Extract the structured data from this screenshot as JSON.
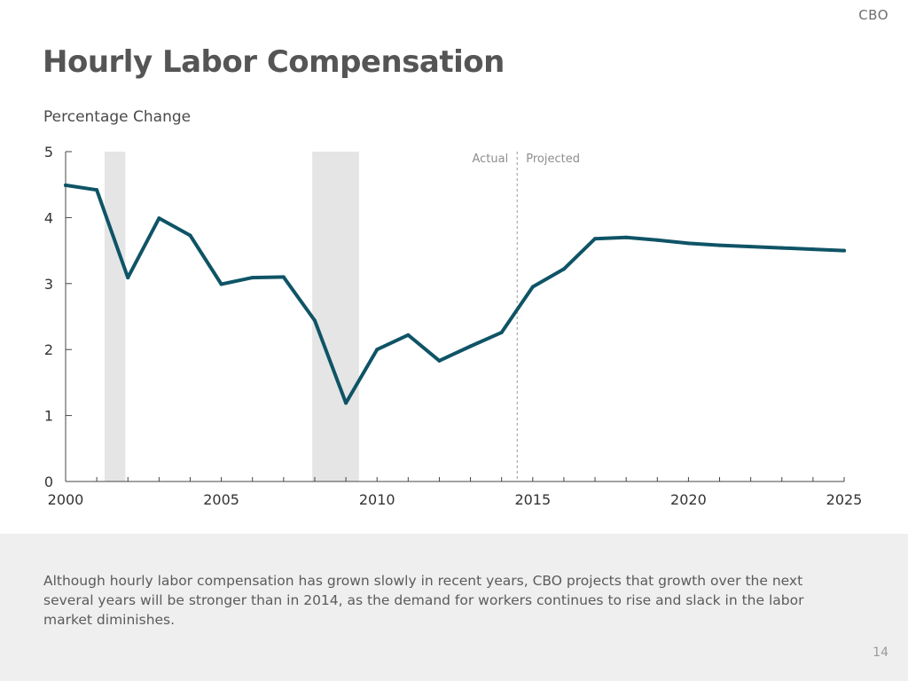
{
  "header": {
    "brand": "CBO"
  },
  "footer": {
    "caption": "Although hourly labor compensation has grown slowly in recent years, CBO projects that growth over the next several years will be stronger than in 2014, as the demand for workers continues to rise and slack in the labor market diminishes.",
    "page_number": "14"
  },
  "chart_data": {
    "type": "line",
    "title": "Hourly Labor Compensation",
    "ylabel": "Percentage Change",
    "xlabel": "",
    "xlim": [
      2000,
      2025
    ],
    "ylim": [
      0,
      5
    ],
    "x_ticks": [
      2000,
      2005,
      2010,
      2015,
      2020,
      2025
    ],
    "y_ticks": [
      0,
      1,
      2,
      3,
      4,
      5
    ],
    "grid": false,
    "line_color": "#0f5466",
    "shaded_periods": [
      {
        "start": 2001.25,
        "end": 2001.92
      },
      {
        "start": 2007.92,
        "end": 2009.42
      }
    ],
    "shade_color": "#e5e5e5",
    "divider": {
      "x": 2014.5,
      "left_label": "Actual",
      "right_label": "Projected"
    },
    "series": [
      {
        "x": [
          2000,
          2001,
          2002,
          2003,
          2004,
          2005,
          2006,
          2007,
          2008,
          2009,
          2010,
          2011,
          2012,
          2013,
          2014,
          2015,
          2016,
          2017,
          2018,
          2019,
          2020,
          2021,
          2022,
          2023,
          2024,
          2025
        ],
        "values": [
          4.49,
          4.42,
          3.09,
          3.99,
          3.73,
          2.99,
          3.09,
          3.1,
          2.44,
          1.19,
          2.0,
          2.22,
          1.83,
          2.05,
          2.26,
          2.95,
          3.22,
          3.68,
          3.7,
          3.66,
          3.61,
          3.58,
          3.56,
          3.54,
          3.52,
          3.5
        ]
      }
    ]
  }
}
